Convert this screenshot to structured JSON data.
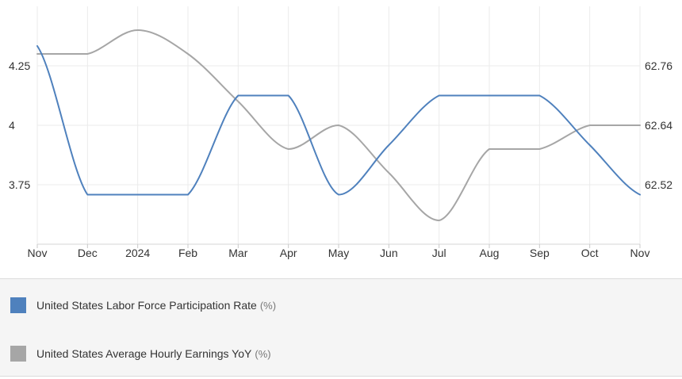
{
  "chart_data": {
    "type": "line",
    "x_labels": [
      "Nov",
      "Dec",
      "2024",
      "Feb",
      "Mar",
      "Apr",
      "May",
      "Jun",
      "Jul",
      "Aug",
      "Sep",
      "Oct",
      "Nov"
    ],
    "left_axis": {
      "ticks": [
        "4.25",
        "4",
        "3.75"
      ],
      "tick_values": [
        4.25,
        4.0,
        3.75
      ],
      "range": [
        3.5,
        4.5
      ]
    },
    "right_axis": {
      "ticks": [
        "62.76",
        "62.64",
        "62.52"
      ],
      "tick_values": [
        62.76,
        62.64,
        62.52
      ],
      "range": [
        62.4,
        62.88
      ]
    },
    "grid": true,
    "legend_position": "bottom",
    "series": [
      {
        "name": "United States Labor Force Participation Rate",
        "unit": "(%)",
        "axis": "right",
        "color": "#4f81bd",
        "values": [
          62.8,
          62.5,
          62.5,
          62.5,
          62.7,
          62.7,
          62.5,
          62.6,
          62.7,
          62.7,
          62.7,
          62.6,
          62.5
        ]
      },
      {
        "name": "United States Average Hourly Earnings YoY",
        "unit": "(%)",
        "axis": "left",
        "color": "#a6a6a6",
        "values": [
          4.3,
          4.3,
          4.4,
          4.3,
          4.1,
          3.9,
          4.0,
          3.8,
          3.6,
          3.9,
          3.9,
          4.0,
          4.0
        ]
      }
    ]
  }
}
